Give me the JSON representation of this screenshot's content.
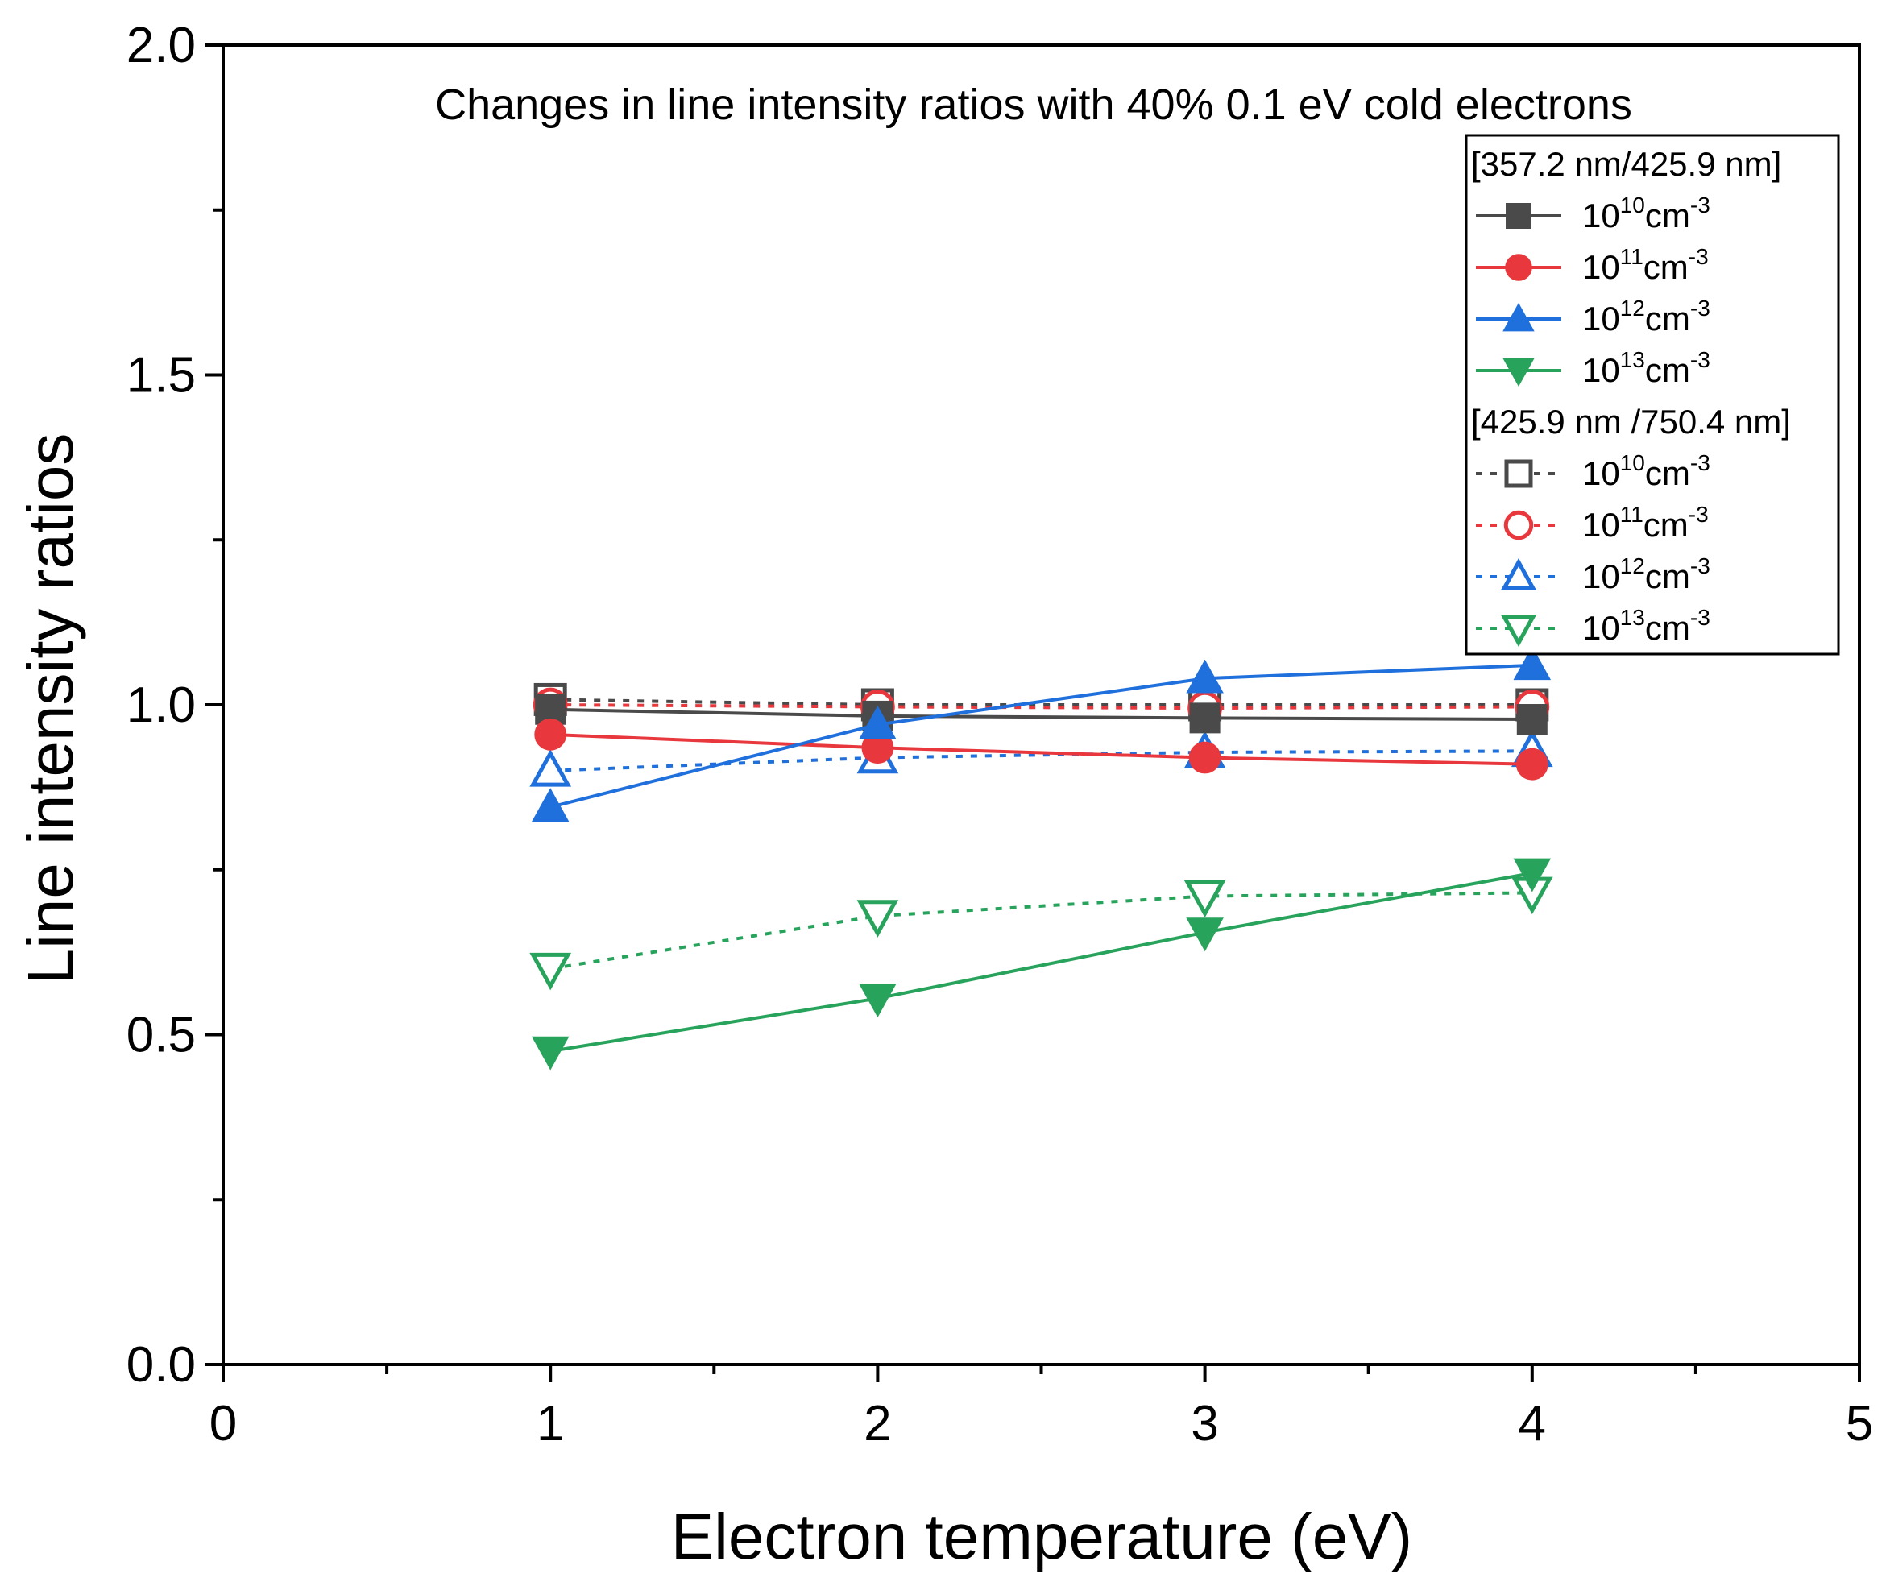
{
  "chart_data": {
    "type": "line",
    "title": "Changes in line intensity ratios with 40% 0.1 eV cold electrons",
    "xlabel": "Electron temperature (eV)",
    "ylabel": "Line intensity ratios",
    "xlim": [
      0,
      5
    ],
    "ylim": [
      0.0,
      2.0
    ],
    "xticks": [
      "0",
      "1",
      "2",
      "3",
      "4",
      "5"
    ],
    "yticks": [
      "0.0",
      "0.5",
      "1.0",
      "1.5",
      "2.0"
    ],
    "x": [
      1,
      2,
      3,
      4
    ],
    "grid": false,
    "legend_position": "top-right",
    "legend_groups": [
      {
        "title": "[357.2 nm/425.9 nm]",
        "series": [
          {
            "name": "10",
            "sup": "10",
            "unit": "cm",
            "unit_sup": "-3",
            "color": "#4a4a4a",
            "marker": "square",
            "filled": true,
            "dashed": false,
            "values": [
              0.993,
              0.983,
              0.98,
              0.978
            ]
          },
          {
            "name": "10",
            "sup": "11",
            "unit": "cm",
            "unit_sup": "-3",
            "color": "#e8383d",
            "marker": "circle",
            "filled": true,
            "dashed": false,
            "values": [
              0.955,
              0.935,
              0.92,
              0.91
            ]
          },
          {
            "name": "10",
            "sup": "12",
            "unit": "cm",
            "unit_sup": "-3",
            "color": "#1f6fdc",
            "marker": "triangle-up",
            "filled": true,
            "dashed": false,
            "values": [
              0.845,
              0.97,
              1.04,
              1.06
            ]
          },
          {
            "name": "10",
            "sup": "13",
            "unit": "cm",
            "unit_sup": "-3",
            "color": "#27a35c",
            "marker": "triangle-down",
            "filled": true,
            "dashed": false,
            "values": [
              0.475,
              0.555,
              0.655,
              0.745
            ]
          }
        ]
      },
      {
        "title": "[425.9 nm /750.4 nm]",
        "series": [
          {
            "name": "10",
            "sup": "10",
            "unit": "cm",
            "unit_sup": "-3",
            "color": "#4a4a4a",
            "marker": "square",
            "filled": false,
            "dashed": true,
            "values": [
              1.008,
              1.0,
              1.0,
              1.0
            ]
          },
          {
            "name": "10",
            "sup": "11",
            "unit": "cm",
            "unit_sup": "-3",
            "color": "#e8383d",
            "marker": "circle",
            "filled": false,
            "dashed": true,
            "values": [
              1.0,
              0.997,
              0.995,
              0.997
            ]
          },
          {
            "name": "10",
            "sup": "12",
            "unit": "cm",
            "unit_sup": "-3",
            "color": "#1f6fdc",
            "marker": "triangle-up",
            "filled": false,
            "dashed": true,
            "values": [
              0.9,
              0.92,
              0.928,
              0.93
            ]
          },
          {
            "name": "10",
            "sup": "13",
            "unit": "cm",
            "unit_sup": "-3",
            "color": "#27a35c",
            "marker": "triangle-down",
            "filled": false,
            "dashed": true,
            "values": [
              0.6,
              0.68,
              0.71,
              0.715
            ]
          }
        ]
      }
    ]
  }
}
